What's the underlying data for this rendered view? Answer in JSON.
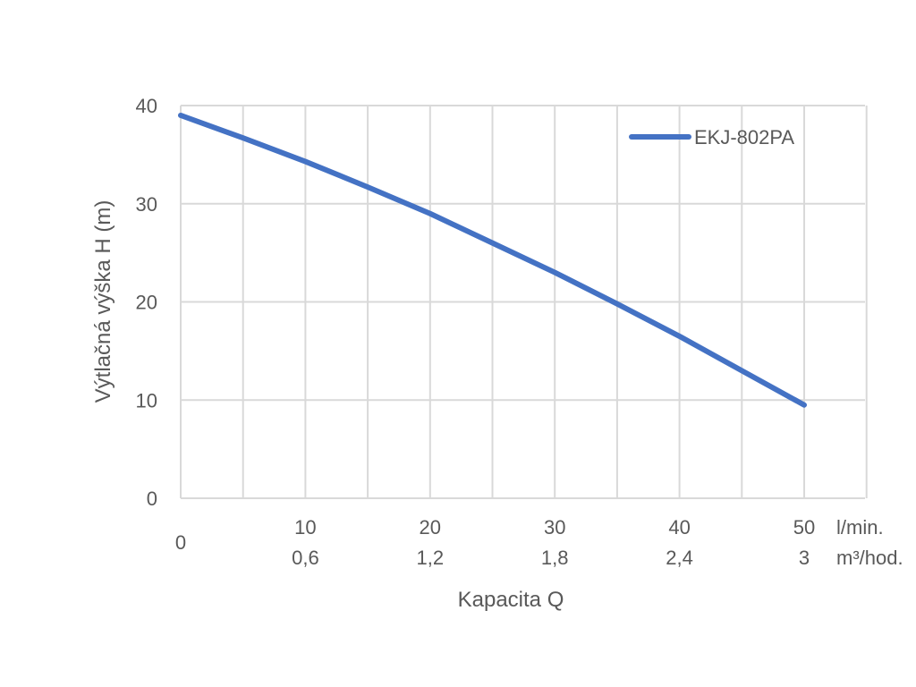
{
  "chart_data": {
    "type": "line",
    "title": "",
    "xlabel": "Kapacita Q",
    "ylabel": "Výtlačná výška H (m)",
    "xlim": [
      0,
      55
    ],
    "ylim": [
      0,
      40
    ],
    "y_ticks": [
      "0",
      "10",
      "20",
      "30",
      "40"
    ],
    "x_ticks_primary": [
      "10",
      "20",
      "30",
      "40",
      "50"
    ],
    "x_ticks_secondary": [
      "0,6",
      "1,2",
      "1,8",
      "2,4",
      "3"
    ],
    "x_origin_label": "0",
    "x_unit_primary": "l/min.",
    "x_unit_secondary": "m³/hod.",
    "grid": true,
    "legend_position": "top-right",
    "series": [
      {
        "name": "EKJ-802PA",
        "color": "#4472C4",
        "x": [
          0,
          5,
          10,
          15,
          20,
          25,
          30,
          35,
          40,
          45,
          50
        ],
        "y": [
          39,
          36.7,
          34.3,
          31.7,
          29,
          26,
          23,
          19.8,
          16.5,
          13,
          9.5
        ]
      }
    ]
  }
}
